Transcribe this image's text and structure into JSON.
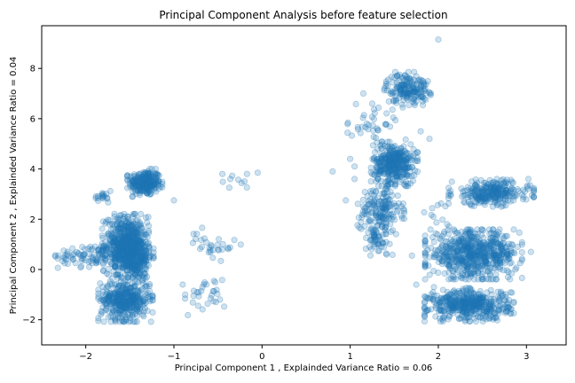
{
  "chart_data": {
    "type": "scatter",
    "title": "Principal Component Analysis before feature selection",
    "xlabel": "Principal Component 1 , Explainded Variance Ratio = 0.06",
    "ylabel": "Principal Component 2 , Explainded Variance Ratio = 0.04",
    "xlim": [
      -2.5,
      3.45
    ],
    "ylim": [
      -3.0,
      9.7
    ],
    "xticks": [
      -2,
      -1,
      0,
      1,
      2,
      3
    ],
    "yticks": [
      -2,
      0,
      2,
      4,
      6,
      8
    ],
    "xtick_labels": [
      "−2",
      "−1",
      "0",
      "1",
      "2",
      "3"
    ],
    "ytick_labels": [
      "−2",
      "0",
      "2",
      "4",
      "6",
      "8"
    ],
    "grid": false,
    "marker_color": "#1f77b4",
    "marker_alpha": 0.22,
    "series": [
      {
        "clusters": [
          {
            "cx": -1.33,
            "cy": 3.45,
            "sx": 0.09,
            "sy": 0.25,
            "n": 260
          },
          {
            "cx": -1.8,
            "cy": 2.9,
            "sx": 0.05,
            "sy": 0.22,
            "n": 18
          },
          {
            "cx": -1.55,
            "cy": 1.0,
            "sx": 0.12,
            "sy": 0.55,
            "n": 520
          },
          {
            "cx": -1.45,
            "cy": 0.55,
            "sx": 0.1,
            "sy": 0.45,
            "n": 300
          },
          {
            "cx": -1.95,
            "cy": 0.55,
            "sx": 0.18,
            "sy": 0.22,
            "n": 80
          },
          {
            "cx": -1.55,
            "cy": -1.2,
            "sx": 0.14,
            "sy": 0.4,
            "n": 420
          },
          {
            "cx": -0.65,
            "cy": -1.05,
            "sx": 0.12,
            "sy": 0.35,
            "n": 30
          },
          {
            "cx": -0.55,
            "cy": 1.0,
            "sx": 0.14,
            "sy": 0.3,
            "n": 30
          },
          {
            "cx": -0.3,
            "cy": 3.55,
            "sx": 0.1,
            "sy": 0.15,
            "n": 8
          },
          {
            "cx": 1.65,
            "cy": 7.2,
            "sx": 0.12,
            "sy": 0.3,
            "n": 180
          },
          {
            "cx": 1.5,
            "cy": 4.2,
            "sx": 0.12,
            "sy": 0.4,
            "n": 360
          },
          {
            "cx": 1.35,
            "cy": 2.4,
            "sx": 0.12,
            "sy": 0.45,
            "n": 160
          },
          {
            "cx": 1.3,
            "cy": 1.2,
            "sx": 0.1,
            "sy": 0.35,
            "n": 60
          },
          {
            "cx": 1.3,
            "cy": 5.7,
            "sx": 0.15,
            "sy": 0.4,
            "n": 40
          },
          {
            "cx": 2.6,
            "cy": 3.05,
            "sx": 0.22,
            "sy": 0.25,
            "n": 280
          },
          {
            "cx": 2.4,
            "cy": 0.6,
            "sx": 0.25,
            "sy": 0.45,
            "n": 620
          },
          {
            "cx": 2.35,
            "cy": -1.4,
            "sx": 0.23,
            "sy": 0.3,
            "n": 460
          },
          {
            "cx": 2.05,
            "cy": 2.1,
            "sx": 0.1,
            "sy": 0.4,
            "n": 12
          }
        ],
        "outliers": [
          [
            2.0,
            9.15
          ],
          [
            1.15,
            7.0
          ],
          [
            1.0,
            4.4
          ],
          [
            1.05,
            4.1
          ],
          [
            0.8,
            3.9
          ],
          [
            1.75,
            -0.6
          ],
          [
            -2.25,
            0.75
          ],
          [
            -0.9,
            -0.6
          ],
          [
            1.95,
            -0.7
          ],
          [
            2.05,
            0.35
          ],
          [
            1.95,
            0.5
          ],
          [
            1.7,
            0.55
          ],
          [
            -1.15,
            3.3
          ],
          [
            -1.0,
            2.75
          ],
          [
            1.8,
            5.5
          ],
          [
            1.9,
            5.2
          ],
          [
            1.25,
            6.6
          ],
          [
            1.05,
            3.6
          ],
          [
            2.1,
            1.8
          ],
          [
            2.9,
            0.9
          ],
          [
            3.05,
            0.7
          ],
          [
            -0.2,
            3.5
          ],
          [
            -0.05,
            3.85
          ],
          [
            -0.45,
            3.8
          ],
          [
            0.95,
            2.75
          ]
        ]
      }
    ]
  }
}
